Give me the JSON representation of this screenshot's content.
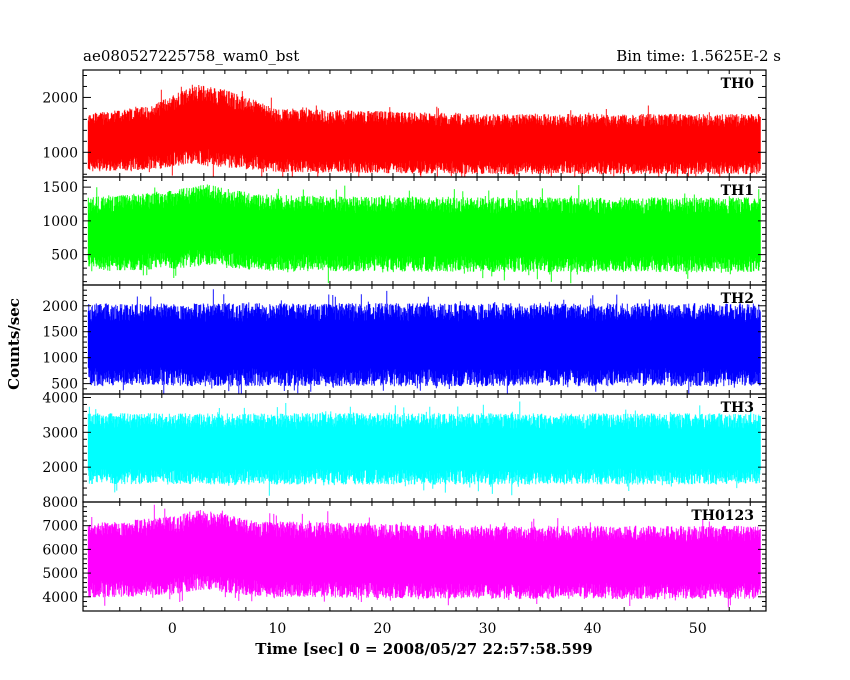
{
  "header": {
    "left_title": "ae080527225758_wam0_bst",
    "right_title": "Bin time: 1.5625E-2 s"
  },
  "chart_data": {
    "type": "line",
    "xlabel": "Time [sec] 0 = 2008/05/27 22:57:58.599",
    "ylabel": "Counts/sec",
    "xlim": [
      -8.5,
      56.5
    ],
    "x_data_range": [
      -8,
      56
    ],
    "x_ticks": [
      0,
      10,
      20,
      30,
      40,
      50
    ],
    "bin_time": 0.015625,
    "panels": [
      {
        "name": "TH0",
        "color": "#ff0000",
        "ylim": [
          550,
          2500
        ],
        "y_ticks": [
          1000,
          2000
        ],
        "profile": [
          {
            "x": -8,
            "low": 650,
            "high": 1700
          },
          {
            "x": -2,
            "low": 680,
            "high": 1850
          },
          {
            "x": 2,
            "low": 780,
            "high": 2250
          },
          {
            "x": 5,
            "low": 720,
            "high": 2150
          },
          {
            "x": 10,
            "low": 640,
            "high": 1800
          },
          {
            "x": 20,
            "low": 620,
            "high": 1750
          },
          {
            "x": 30,
            "low": 600,
            "high": 1700
          },
          {
            "x": 40,
            "low": 600,
            "high": 1700
          },
          {
            "x": 56,
            "low": 600,
            "high": 1700
          }
        ]
      },
      {
        "name": "TH1",
        "color": "#00ff00",
        "ylim": [
          50,
          1650
        ],
        "y_ticks": [
          500,
          1000,
          1500
        ],
        "profile": [
          {
            "x": -8,
            "low": 250,
            "high": 1350
          },
          {
            "x": 0,
            "low": 280,
            "high": 1450
          },
          {
            "x": 3,
            "low": 330,
            "high": 1550
          },
          {
            "x": 8,
            "low": 260,
            "high": 1400
          },
          {
            "x": 20,
            "low": 250,
            "high": 1350
          },
          {
            "x": 35,
            "low": 240,
            "high": 1350
          },
          {
            "x": 56,
            "low": 240,
            "high": 1350
          }
        ]
      },
      {
        "name": "TH2",
        "color": "#0000ff",
        "ylim": [
          300,
          2400
        ],
        "y_ticks": [
          500,
          1000,
          1500,
          2000
        ],
        "profile": [
          {
            "x": -8,
            "low": 450,
            "high": 2050
          },
          {
            "x": 20,
            "low": 450,
            "high": 2050
          },
          {
            "x": 56,
            "low": 450,
            "high": 2050
          }
        ]
      },
      {
        "name": "TH3",
        "color": "#00ffff",
        "ylim": [
          1000,
          4100
        ],
        "y_ticks": [
          2000,
          3000,
          4000
        ],
        "profile": [
          {
            "x": -8,
            "low": 1500,
            "high": 3550
          },
          {
            "x": 20,
            "low": 1500,
            "high": 3550
          },
          {
            "x": 56,
            "low": 1500,
            "high": 3550
          }
        ]
      },
      {
        "name": "TH0123",
        "color": "#ff00ff",
        "ylim": [
          3400,
          8000
        ],
        "y_ticks": [
          4000,
          5000,
          6000,
          7000,
          8000
        ],
        "profile": [
          {
            "x": -8,
            "low": 3900,
            "high": 7100
          },
          {
            "x": 0,
            "low": 4100,
            "high": 7400
          },
          {
            "x": 3,
            "low": 4300,
            "high": 7700
          },
          {
            "x": 8,
            "low": 4000,
            "high": 7200
          },
          {
            "x": 30,
            "low": 3900,
            "high": 7000
          },
          {
            "x": 56,
            "low": 3900,
            "high": 7000
          }
        ]
      }
    ]
  }
}
